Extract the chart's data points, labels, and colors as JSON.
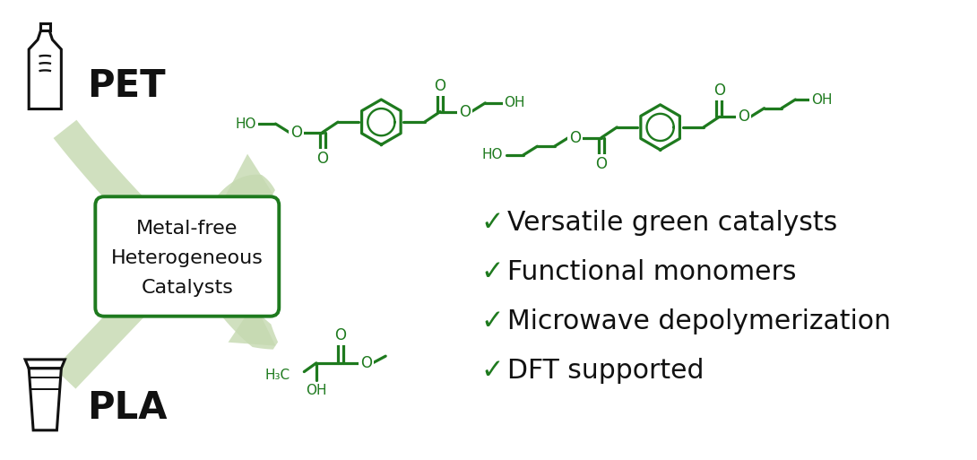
{
  "bg_color": "#ffffff",
  "green_dark": "#1e7a1e",
  "green_arrow": "#b8cfaa",
  "black": "#111111",
  "pet_label": "PET",
  "pla_label": "PLA",
  "box_text_lines": [
    "Metal-free",
    "Heterogeneous",
    "Catalysts"
  ],
  "bullet_items": [
    "Versatile green catalysts",
    "Functional monomers",
    "Microwave depolymerization",
    "DFT supported"
  ],
  "check_mark": "✓",
  "arrow_color": "#c5d9b0",
  "fig_w": 10.9,
  "fig_h": 5.13,
  "dpi": 100
}
